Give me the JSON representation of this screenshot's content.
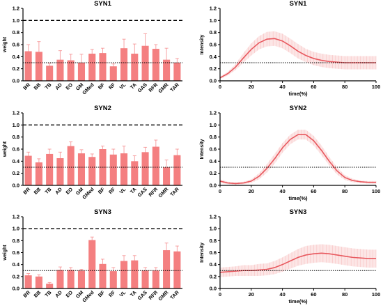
{
  "figure": {
    "colors": {
      "bar": "#f47f80",
      "bar_edge": "#f47f80",
      "line": "#e8595f",
      "band": "#f7b8b8",
      "axis": "#000000"
    }
  },
  "chart_data": [
    {
      "type": "bar",
      "title": "SYN1",
      "ylabel": "weight",
      "xlabel": "",
      "ylim": [
        0,
        1.2
      ],
      "yticks": [
        0,
        0.2,
        0.4,
        0.6,
        0.8,
        1.0,
        1.2
      ],
      "categories": [
        "BR",
        "BB",
        "TB",
        "AD",
        "EO",
        "GM",
        "GMed",
        "BF",
        "RF",
        "VL",
        "TA",
        "GAS",
        "RFR",
        "GMR",
        "TAR"
      ],
      "values": [
        0.49,
        0.48,
        0.25,
        0.35,
        0.34,
        0.3,
        0.45,
        0.46,
        0.24,
        0.54,
        0.45,
        0.58,
        0.53,
        0.35,
        0.3
      ],
      "errors": [
        0.11,
        0.17,
        0.04,
        0.15,
        0.1,
        0.14,
        0.07,
        0.08,
        0.04,
        0.15,
        0.16,
        0.2,
        0.07,
        0.19,
        0.07
      ],
      "hlines": [
        {
          "y": 1.0,
          "style": "dashed"
        },
        {
          "y": 0.3,
          "style": "dotted"
        }
      ]
    },
    {
      "type": "line",
      "title": "SYN1",
      "ylabel": "Intensity",
      "xlabel": "time(%)",
      "xlim": [
        0,
        100
      ],
      "ylim": [
        0,
        1.2
      ],
      "xticks": [
        0,
        20,
        40,
        60,
        80,
        100
      ],
      "yticks": [
        0,
        0.2,
        0.4,
        0.6,
        0.8,
        1.0,
        1.2
      ],
      "x": [
        0,
        5,
        10,
        15,
        20,
        25,
        30,
        35,
        40,
        45,
        50,
        55,
        60,
        65,
        70,
        75,
        80,
        85,
        90,
        95,
        100
      ],
      "y": [
        0.05,
        0.12,
        0.23,
        0.38,
        0.52,
        0.63,
        0.69,
        0.7,
        0.66,
        0.58,
        0.49,
        0.42,
        0.37,
        0.34,
        0.32,
        0.31,
        0.3,
        0.3,
        0.3,
        0.3,
        0.3
      ],
      "err": [
        0.02,
        0.03,
        0.05,
        0.08,
        0.1,
        0.11,
        0.12,
        0.12,
        0.12,
        0.12,
        0.12,
        0.11,
        0.11,
        0.11,
        0.11,
        0.11,
        0.11,
        0.11,
        0.11,
        0.11,
        0.11
      ],
      "hlines": [
        {
          "y": 0.3,
          "style": "dotted"
        }
      ]
    },
    {
      "type": "bar",
      "title": "SYN2",
      "ylabel": "weight",
      "xlabel": "",
      "ylim": [
        0,
        1.2
      ],
      "yticks": [
        0,
        0.2,
        0.4,
        0.6,
        0.8,
        1.0,
        1.2
      ],
      "categories": [
        "BR",
        "BB",
        "TB",
        "AD",
        "EO",
        "GM",
        "GMed",
        "BF",
        "RF",
        "VL",
        "TA",
        "GAS",
        "RFR",
        "GMR",
        "TAR"
      ],
      "values": [
        0.49,
        0.38,
        0.52,
        0.45,
        0.65,
        0.53,
        0.47,
        0.6,
        0.51,
        0.53,
        0.4,
        0.55,
        0.64,
        0.3,
        0.5
      ],
      "errors": [
        0.06,
        0.06,
        0.08,
        0.1,
        0.07,
        0.06,
        0.05,
        0.05,
        0.09,
        0.12,
        0.09,
        0.08,
        0.11,
        0.12,
        0.1
      ],
      "hlines": [
        {
          "y": 1.0,
          "style": "dashed"
        },
        {
          "y": 0.3,
          "style": "dotted"
        }
      ]
    },
    {
      "type": "line",
      "title": "SYN2",
      "ylabel": "Intensity",
      "xlabel": "time(%)",
      "xlim": [
        0,
        100
      ],
      "ylim": [
        0,
        1.2
      ],
      "xticks": [
        0,
        20,
        40,
        60,
        80,
        100
      ],
      "yticks": [
        0,
        0.2,
        0.4,
        0.6,
        0.8,
        1.0,
        1.2
      ],
      "x": [
        0,
        5,
        10,
        15,
        20,
        25,
        30,
        35,
        40,
        45,
        50,
        55,
        60,
        65,
        70,
        75,
        80,
        85,
        90,
        95,
        100
      ],
      "y": [
        0.07,
        0.04,
        0.03,
        0.04,
        0.07,
        0.15,
        0.28,
        0.44,
        0.62,
        0.76,
        0.84,
        0.84,
        0.74,
        0.58,
        0.4,
        0.24,
        0.13,
        0.08,
        0.06,
        0.05,
        0.05
      ],
      "err": [
        0.03,
        0.02,
        0.02,
        0.02,
        0.03,
        0.05,
        0.07,
        0.08,
        0.08,
        0.08,
        0.08,
        0.08,
        0.08,
        0.08,
        0.07,
        0.06,
        0.04,
        0.03,
        0.02,
        0.02,
        0.02
      ],
      "hlines": [
        {
          "y": 0.3,
          "style": "dotted"
        }
      ]
    },
    {
      "type": "bar",
      "title": "SYN3",
      "ylabel": "weight",
      "xlabel": "",
      "ylim": [
        0,
        1.2
      ],
      "yticks": [
        0,
        0.2,
        0.4,
        0.6,
        0.8,
        1.0,
        1.2
      ],
      "categories": [
        "BR",
        "BB",
        "TB",
        "AD",
        "EO",
        "GM",
        "GMed",
        "BF",
        "RF",
        "VL",
        "TA",
        "GAS",
        "RFR",
        "GMR",
        "TAR"
      ],
      "values": [
        0.22,
        0.2,
        0.08,
        0.31,
        0.31,
        0.3,
        0.81,
        0.41,
        0.29,
        0.46,
        0.47,
        0.3,
        0.3,
        0.64,
        0.62
      ],
      "errors": [
        0.03,
        0.03,
        0.02,
        0.05,
        0.04,
        0.02,
        0.05,
        0.08,
        0.06,
        0.09,
        0.08,
        0.05,
        0.05,
        0.12,
        0.09
      ],
      "hlines": [
        {
          "y": 1.0,
          "style": "dashed"
        },
        {
          "y": 0.3,
          "style": "dotted"
        }
      ]
    },
    {
      "type": "line",
      "title": "SYN3",
      "ylabel": "Intensity",
      "xlabel": "time(%)",
      "xlim": [
        0,
        100
      ],
      "ylim": [
        0,
        1.2
      ],
      "xticks": [
        0,
        20,
        40,
        60,
        80,
        100
      ],
      "yticks": [
        0,
        0.2,
        0.4,
        0.6,
        0.8,
        1.0,
        1.2
      ],
      "x": [
        0,
        5,
        10,
        15,
        20,
        25,
        30,
        35,
        40,
        45,
        50,
        55,
        60,
        65,
        70,
        75,
        80,
        85,
        90,
        95,
        100
      ],
      "y": [
        0.27,
        0.28,
        0.29,
        0.3,
        0.3,
        0.31,
        0.32,
        0.35,
        0.4,
        0.46,
        0.52,
        0.56,
        0.58,
        0.59,
        0.58,
        0.56,
        0.54,
        0.52,
        0.51,
        0.5,
        0.5
      ],
      "err": [
        0.08,
        0.08,
        0.08,
        0.09,
        0.09,
        0.1,
        0.1,
        0.11,
        0.12,
        0.13,
        0.14,
        0.15,
        0.15,
        0.15,
        0.15,
        0.15,
        0.15,
        0.15,
        0.15,
        0.15,
        0.15
      ],
      "hlines": [
        {
          "y": 0.3,
          "style": "dotted"
        }
      ]
    }
  ]
}
